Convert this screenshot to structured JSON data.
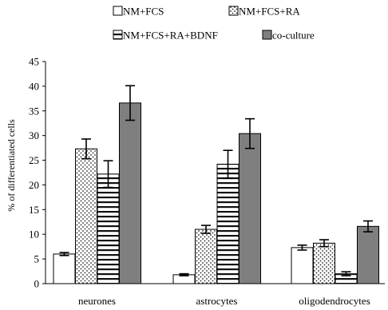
{
  "chart_data": {
    "type": "bar",
    "title": "",
    "xlabel": "",
    "ylabel": "% of differentiated cells",
    "ylim": [
      0,
      45
    ],
    "yticks": [
      "0",
      "5",
      "10",
      "15",
      "20",
      "25",
      "30",
      "35",
      "40",
      "45"
    ],
    "categories": [
      "neurones",
      "astrocytes",
      "oligodendrocytes"
    ],
    "grid": false,
    "legend_position": "top",
    "series": [
      {
        "name": "NM+FCS",
        "pattern": "white",
        "values": [
          6.0,
          1.8,
          7.3
        ],
        "errors": [
          0.3,
          0.2,
          0.5
        ]
      },
      {
        "name": "NM+FCS+RA",
        "pattern": "dots",
        "values": [
          27.3,
          11.0,
          8.2
        ],
        "errors": [
          2.0,
          0.8,
          0.7
        ]
      },
      {
        "name": "NM+FCS+RA+BDNF",
        "pattern": "horizontal-lines",
        "values": [
          22.2,
          24.2,
          2.0
        ],
        "errors": [
          2.7,
          2.8,
          0.4
        ]
      },
      {
        "name": "co-culture",
        "pattern": "gray",
        "values": [
          36.6,
          30.4,
          11.6
        ],
        "errors": [
          3.5,
          3.0,
          1.1
        ]
      }
    ]
  }
}
